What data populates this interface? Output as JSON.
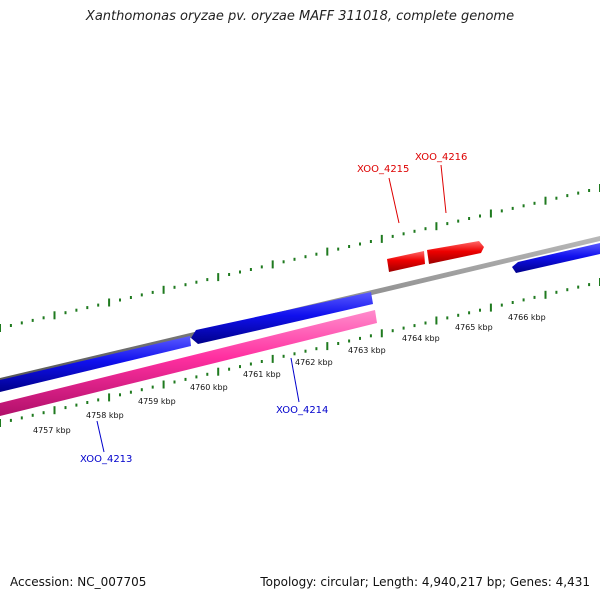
{
  "title": "Xanthomonas oryzae pv. oryzae MAFF 311018, complete genome",
  "footer": {
    "accession": "Accession: NC_007705",
    "summary": "Topology: circular; Length: 4,940,217 bp; Genes: 4,431"
  },
  "colors": {
    "backbone": "#888888",
    "forward_gene": "#0000ee",
    "reverse_gene": "#ee0000",
    "cds": "#ff2fa0",
    "tick": "#1f7a1f",
    "label_blue": "#0000cc",
    "label_red": "#dd0000"
  },
  "scale_labels": [
    "4757 kbp",
    "4758 kbp",
    "4759 kbp",
    "4760 kbp",
    "4761 kbp",
    "4762 kbp",
    "4763 kbp",
    "4764 kbp",
    "4765 kbp",
    "4766 kbp"
  ],
  "gene_labels": {
    "xoo_4213": "XOO_4213",
    "xoo_4214": "XOO_4214",
    "xoo_4215": "XOO_4215",
    "xoo_4216": "XOO_4216"
  }
}
